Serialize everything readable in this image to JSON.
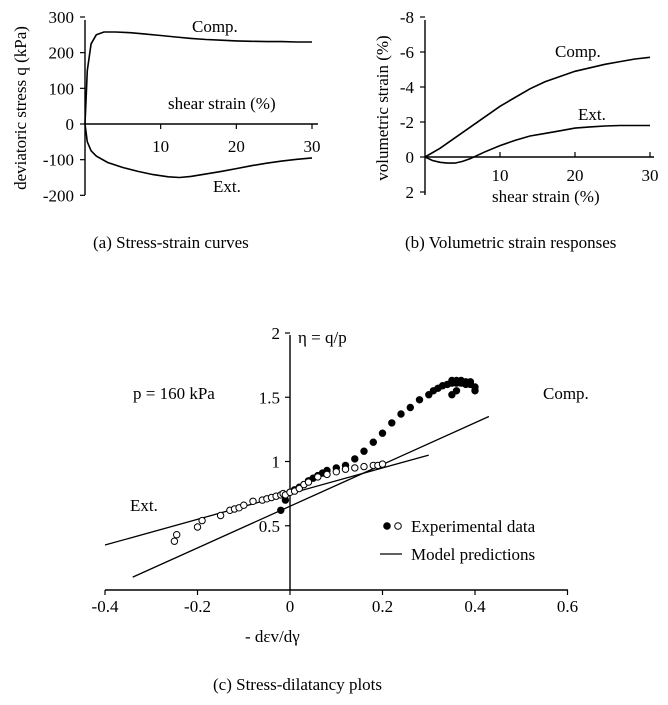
{
  "chart_data": [
    {
      "type": "line",
      "caption": "(a)  Stress-strain curves",
      "ylabel": "deviatoric stress q (kPa)",
      "xlabel": "shear strain (%)",
      "xlim": [
        0,
        30
      ],
      "ylim": [
        -200,
        300
      ],
      "xticks": [
        10,
        20,
        30
      ],
      "yticks": [
        -200,
        -100,
        0,
        100,
        200,
        300
      ],
      "series": [
        {
          "name": "Comp.",
          "x": [
            0,
            0.3,
            0.8,
            1.5,
            2.5,
            4,
            6,
            8,
            10,
            12,
            14,
            16,
            18,
            20,
            22,
            24,
            26,
            28,
            30
          ],
          "y": [
            0,
            150,
            225,
            250,
            258,
            258,
            256,
            252,
            248,
            244,
            240,
            237,
            235,
            233,
            232,
            231,
            231,
            230,
            230
          ]
        },
        {
          "name": "Ext.",
          "x": [
            0,
            0.3,
            0.8,
            1.5,
            3,
            5,
            7,
            9,
            11,
            12.5,
            14,
            16,
            18,
            20,
            22,
            24,
            26,
            28,
            30
          ],
          "y": [
            0,
            -50,
            -75,
            -90,
            -108,
            -122,
            -133,
            -142,
            -148,
            -150,
            -147,
            -140,
            -133,
            -125,
            -117,
            -110,
            -104,
            -99,
            -95
          ]
        }
      ]
    },
    {
      "type": "line",
      "caption": "(b) Volumetric strain responses",
      "ylabel": "volumetric strain (%)",
      "xlabel": "shear strain (%)",
      "xlim": [
        0,
        30
      ],
      "ylim": [
        2,
        -8
      ],
      "yaxis_inverted": true,
      "xticks": [
        10,
        20,
        30
      ],
      "yticks": [
        2,
        0,
        -2,
        -4,
        -6,
        -8
      ],
      "series": [
        {
          "name": "Comp.",
          "x": [
            0,
            2,
            4,
            6,
            8,
            10,
            12,
            14,
            16,
            18,
            20,
            22,
            24,
            26,
            28,
            30
          ],
          "y": [
            0,
            -0.5,
            -1.1,
            -1.7,
            -2.3,
            -2.9,
            -3.4,
            -3.9,
            -4.3,
            -4.6,
            -4.9,
            -5.1,
            -5.3,
            -5.45,
            -5.6,
            -5.7
          ]
        },
        {
          "name": "Ext.",
          "x": [
            0,
            1,
            2,
            3,
            4,
            5,
            6,
            7,
            8,
            10,
            12,
            14,
            16,
            18,
            20,
            22,
            24,
            26,
            28,
            30
          ],
          "y": [
            0,
            0.2,
            0.3,
            0.35,
            0.35,
            0.25,
            0.1,
            -0.1,
            -0.3,
            -0.65,
            -0.95,
            -1.2,
            -1.35,
            -1.5,
            -1.65,
            -1.72,
            -1.77,
            -1.8,
            -1.8,
            -1.8
          ]
        }
      ]
    },
    {
      "type": "scatter",
      "caption": "(c) Stress-dilatancy plots",
      "ylabel": "η = q/p",
      "xlabel": "- dεv/dγ",
      "xlim": [
        -0.4,
        0.6
      ],
      "ylim": [
        0,
        2
      ],
      "xticks": [
        -0.4,
        -0.2,
        0,
        0.2,
        0.4,
        0.6
      ],
      "yticks": [
        0.5,
        1,
        1.5,
        2
      ],
      "annotation": "p = 160 kPa",
      "legend": [
        {
          "symbol": "● ○",
          "label": "Experimental data"
        },
        {
          "symbol": "—",
          "label": "Model predictions"
        }
      ],
      "series": [
        {
          "name": "Comp.",
          "marker": "filled",
          "x": [
            -0.02,
            -0.01,
            0.0,
            0.01,
            0.02,
            0.03,
            0.04,
            0.05,
            0.06,
            0.07,
            0.08,
            0.1,
            0.12,
            0.14,
            0.16,
            0.18,
            0.2,
            0.22,
            0.24,
            0.26,
            0.28,
            0.3,
            0.31,
            0.32,
            0.33,
            0.34,
            0.35,
            0.35,
            0.36,
            0.36,
            0.37,
            0.37,
            0.38,
            0.38,
            0.39,
            0.39,
            0.4,
            0.36,
            0.35,
            0.4
          ],
          "y": [
            0.62,
            0.7,
            0.76,
            0.78,
            0.8,
            0.82,
            0.85,
            0.87,
            0.89,
            0.91,
            0.93,
            0.95,
            0.97,
            1.02,
            1.08,
            1.15,
            1.22,
            1.3,
            1.37,
            1.42,
            1.48,
            1.52,
            1.55,
            1.57,
            1.59,
            1.6,
            1.61,
            1.63,
            1.61,
            1.63,
            1.61,
            1.63,
            1.6,
            1.62,
            1.6,
            1.62,
            1.58,
            1.55,
            1.52,
            1.55
          ]
        },
        {
          "name": "Ext.",
          "marker": "open",
          "x": [
            -0.25,
            -0.245,
            -0.2,
            -0.19,
            -0.15,
            -0.13,
            -0.12,
            -0.11,
            -0.1,
            -0.08,
            -0.06,
            -0.05,
            -0.04,
            -0.03,
            -0.02,
            -0.015,
            -0.01,
            0.0,
            0.01,
            0.02,
            0.03,
            0.04,
            0.06,
            0.08,
            0.1,
            0.12,
            0.14,
            0.16,
            0.18,
            0.19,
            0.2
          ],
          "y": [
            0.38,
            0.43,
            0.49,
            0.54,
            0.58,
            0.62,
            0.63,
            0.64,
            0.66,
            0.69,
            0.7,
            0.71,
            0.72,
            0.73,
            0.74,
            0.75,
            0.74,
            0.76,
            0.77,
            0.79,
            0.82,
            0.84,
            0.88,
            0.9,
            0.92,
            0.94,
            0.95,
            0.96,
            0.97,
            0.97,
            0.98
          ]
        }
      ],
      "model_lines": [
        {
          "name": "Ext. model",
          "x": [
            -0.4,
            0.3
          ],
          "y": [
            0.35,
            1.05
          ]
        },
        {
          "name": "Comp. model",
          "x": [
            -0.34,
            0.43
          ],
          "y": [
            0.1,
            1.35
          ]
        }
      ]
    }
  ]
}
